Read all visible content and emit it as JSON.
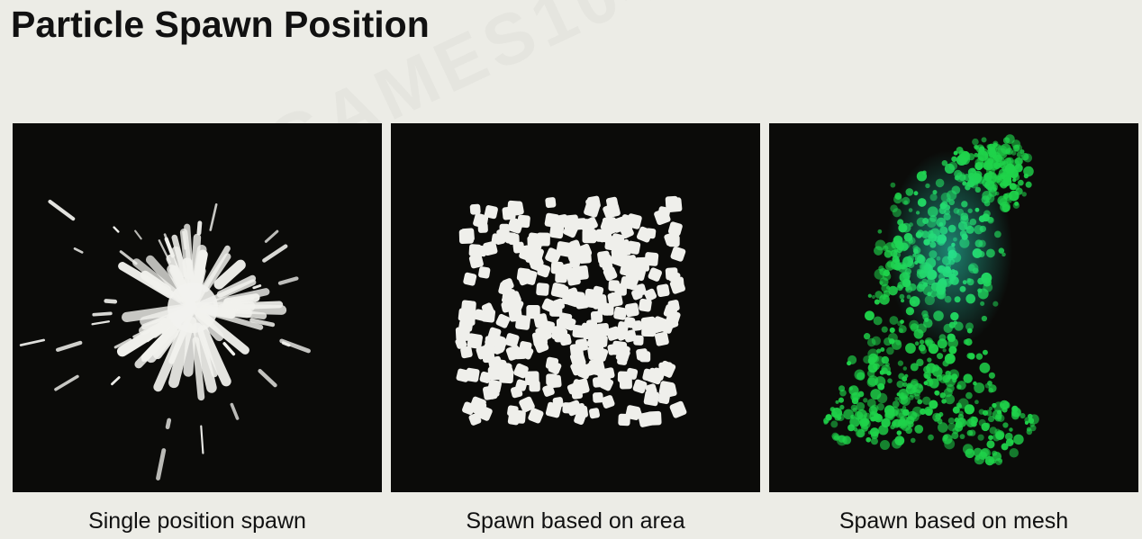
{
  "page": {
    "title": "Particle Spawn Position",
    "background": "#ecece6",
    "panel_background": "#0b0b09"
  },
  "panels": [
    {
      "caption": "Single position spawn",
      "particle_color": "#f2f2ee"
    },
    {
      "caption": "Spawn based on area",
      "particle_color": "#efefeb"
    },
    {
      "caption": "Spawn based on mesh",
      "particle_color": "#1fd34a",
      "glow_color": "#2ee8c8"
    }
  ]
}
